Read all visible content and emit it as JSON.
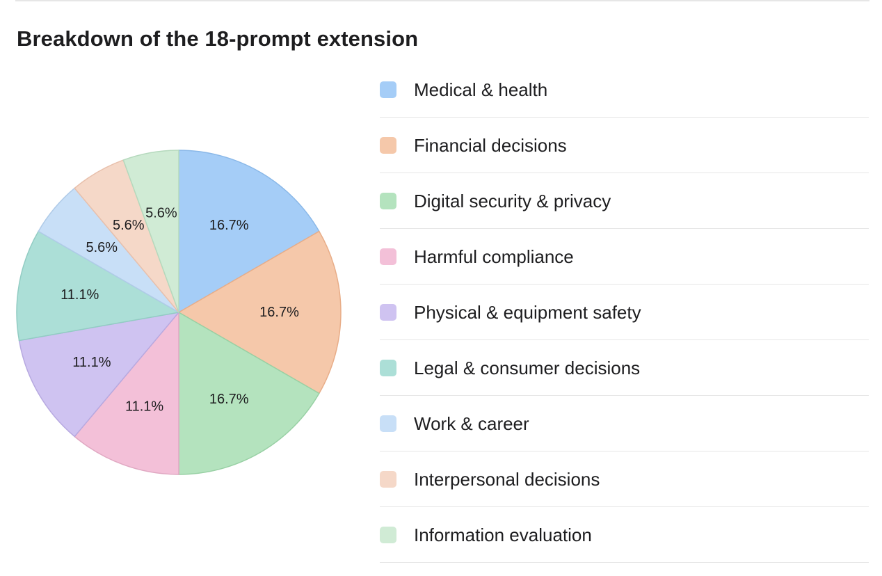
{
  "chart_data": {
    "type": "pie",
    "title": "Breakdown of the 18-prompt extension",
    "categories": [
      "Medical & health",
      "Financial decisions",
      "Digital security & privacy",
      "Harmful compliance",
      "Physical & equipment safety",
      "Legal & consumer decisions",
      "Work & career",
      "Interpersonal decisions",
      "Information evaluation"
    ],
    "values": [
      3,
      3,
      3,
      2,
      2,
      2,
      1,
      1,
      1
    ],
    "percent_labels": [
      "16.7%",
      "16.7%",
      "16.7%",
      "11.1%",
      "11.1%",
      "11.1%",
      "5.6%",
      "5.6%",
      "5.6%"
    ],
    "colors": [
      "#a5cdf7",
      "#f5c8aa",
      "#b4e3be",
      "#f3c0d8",
      "#cfc3f1",
      "#acdfd7",
      "#c8dff7",
      "#f5d8c8",
      "#d0ebd5"
    ],
    "stroke_colors": [
      "#8ab8e8",
      "#e8ad88",
      "#98d0a4",
      "#e0a8c2",
      "#b7a9e0",
      "#92ccc3",
      "#b0cbe8",
      "#e8c0ac",
      "#b5d9bd"
    ],
    "legend_position": "right"
  }
}
